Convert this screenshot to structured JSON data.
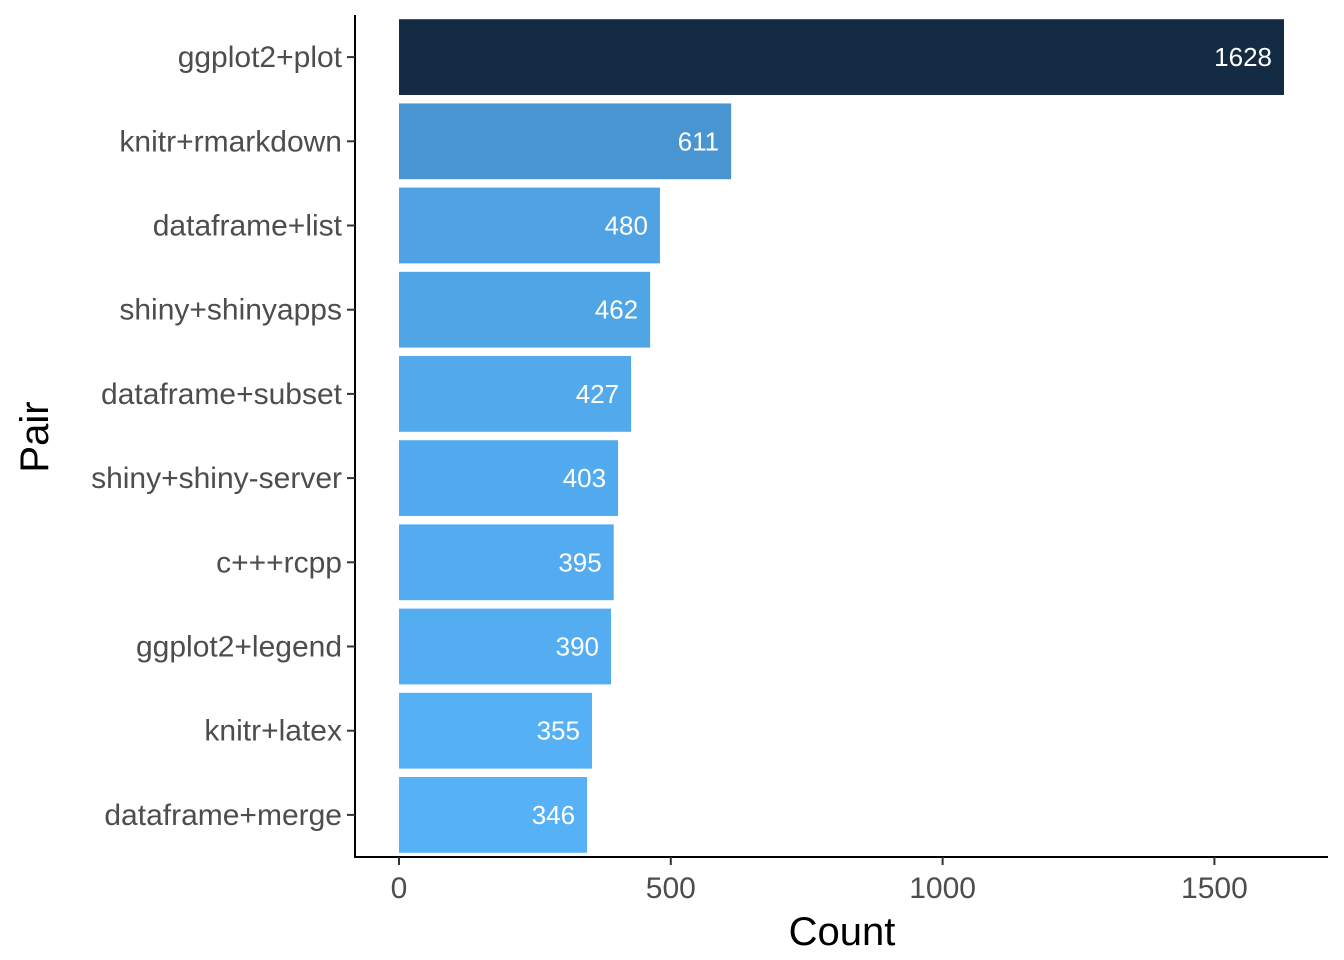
{
  "chart_data": {
    "type": "bar",
    "orientation": "horizontal",
    "title": "",
    "xlabel": "Count",
    "ylabel": "Pair",
    "categories": [
      "ggplot2+plot",
      "knitr+rmarkdown",
      "dataframe+list",
      "shiny+shinyapps",
      "dataframe+subset",
      "shiny+shiny-server",
      "c+++rcpp",
      "ggplot2+legend",
      "knitr+latex",
      "dataframe+merge"
    ],
    "values": [
      1628,
      611,
      480,
      462,
      427,
      403,
      395,
      390,
      355,
      346
    ],
    "xlim": [
      0,
      1700
    ],
    "xticks": [
      0,
      500,
      1000,
      1500
    ],
    "grid": false,
    "legend": "none",
    "color_scale": {
      "low": "#56B1F7",
      "high": "#132B43",
      "min_value": 346,
      "max_value": 1628
    },
    "label_color": "#ffffff"
  }
}
